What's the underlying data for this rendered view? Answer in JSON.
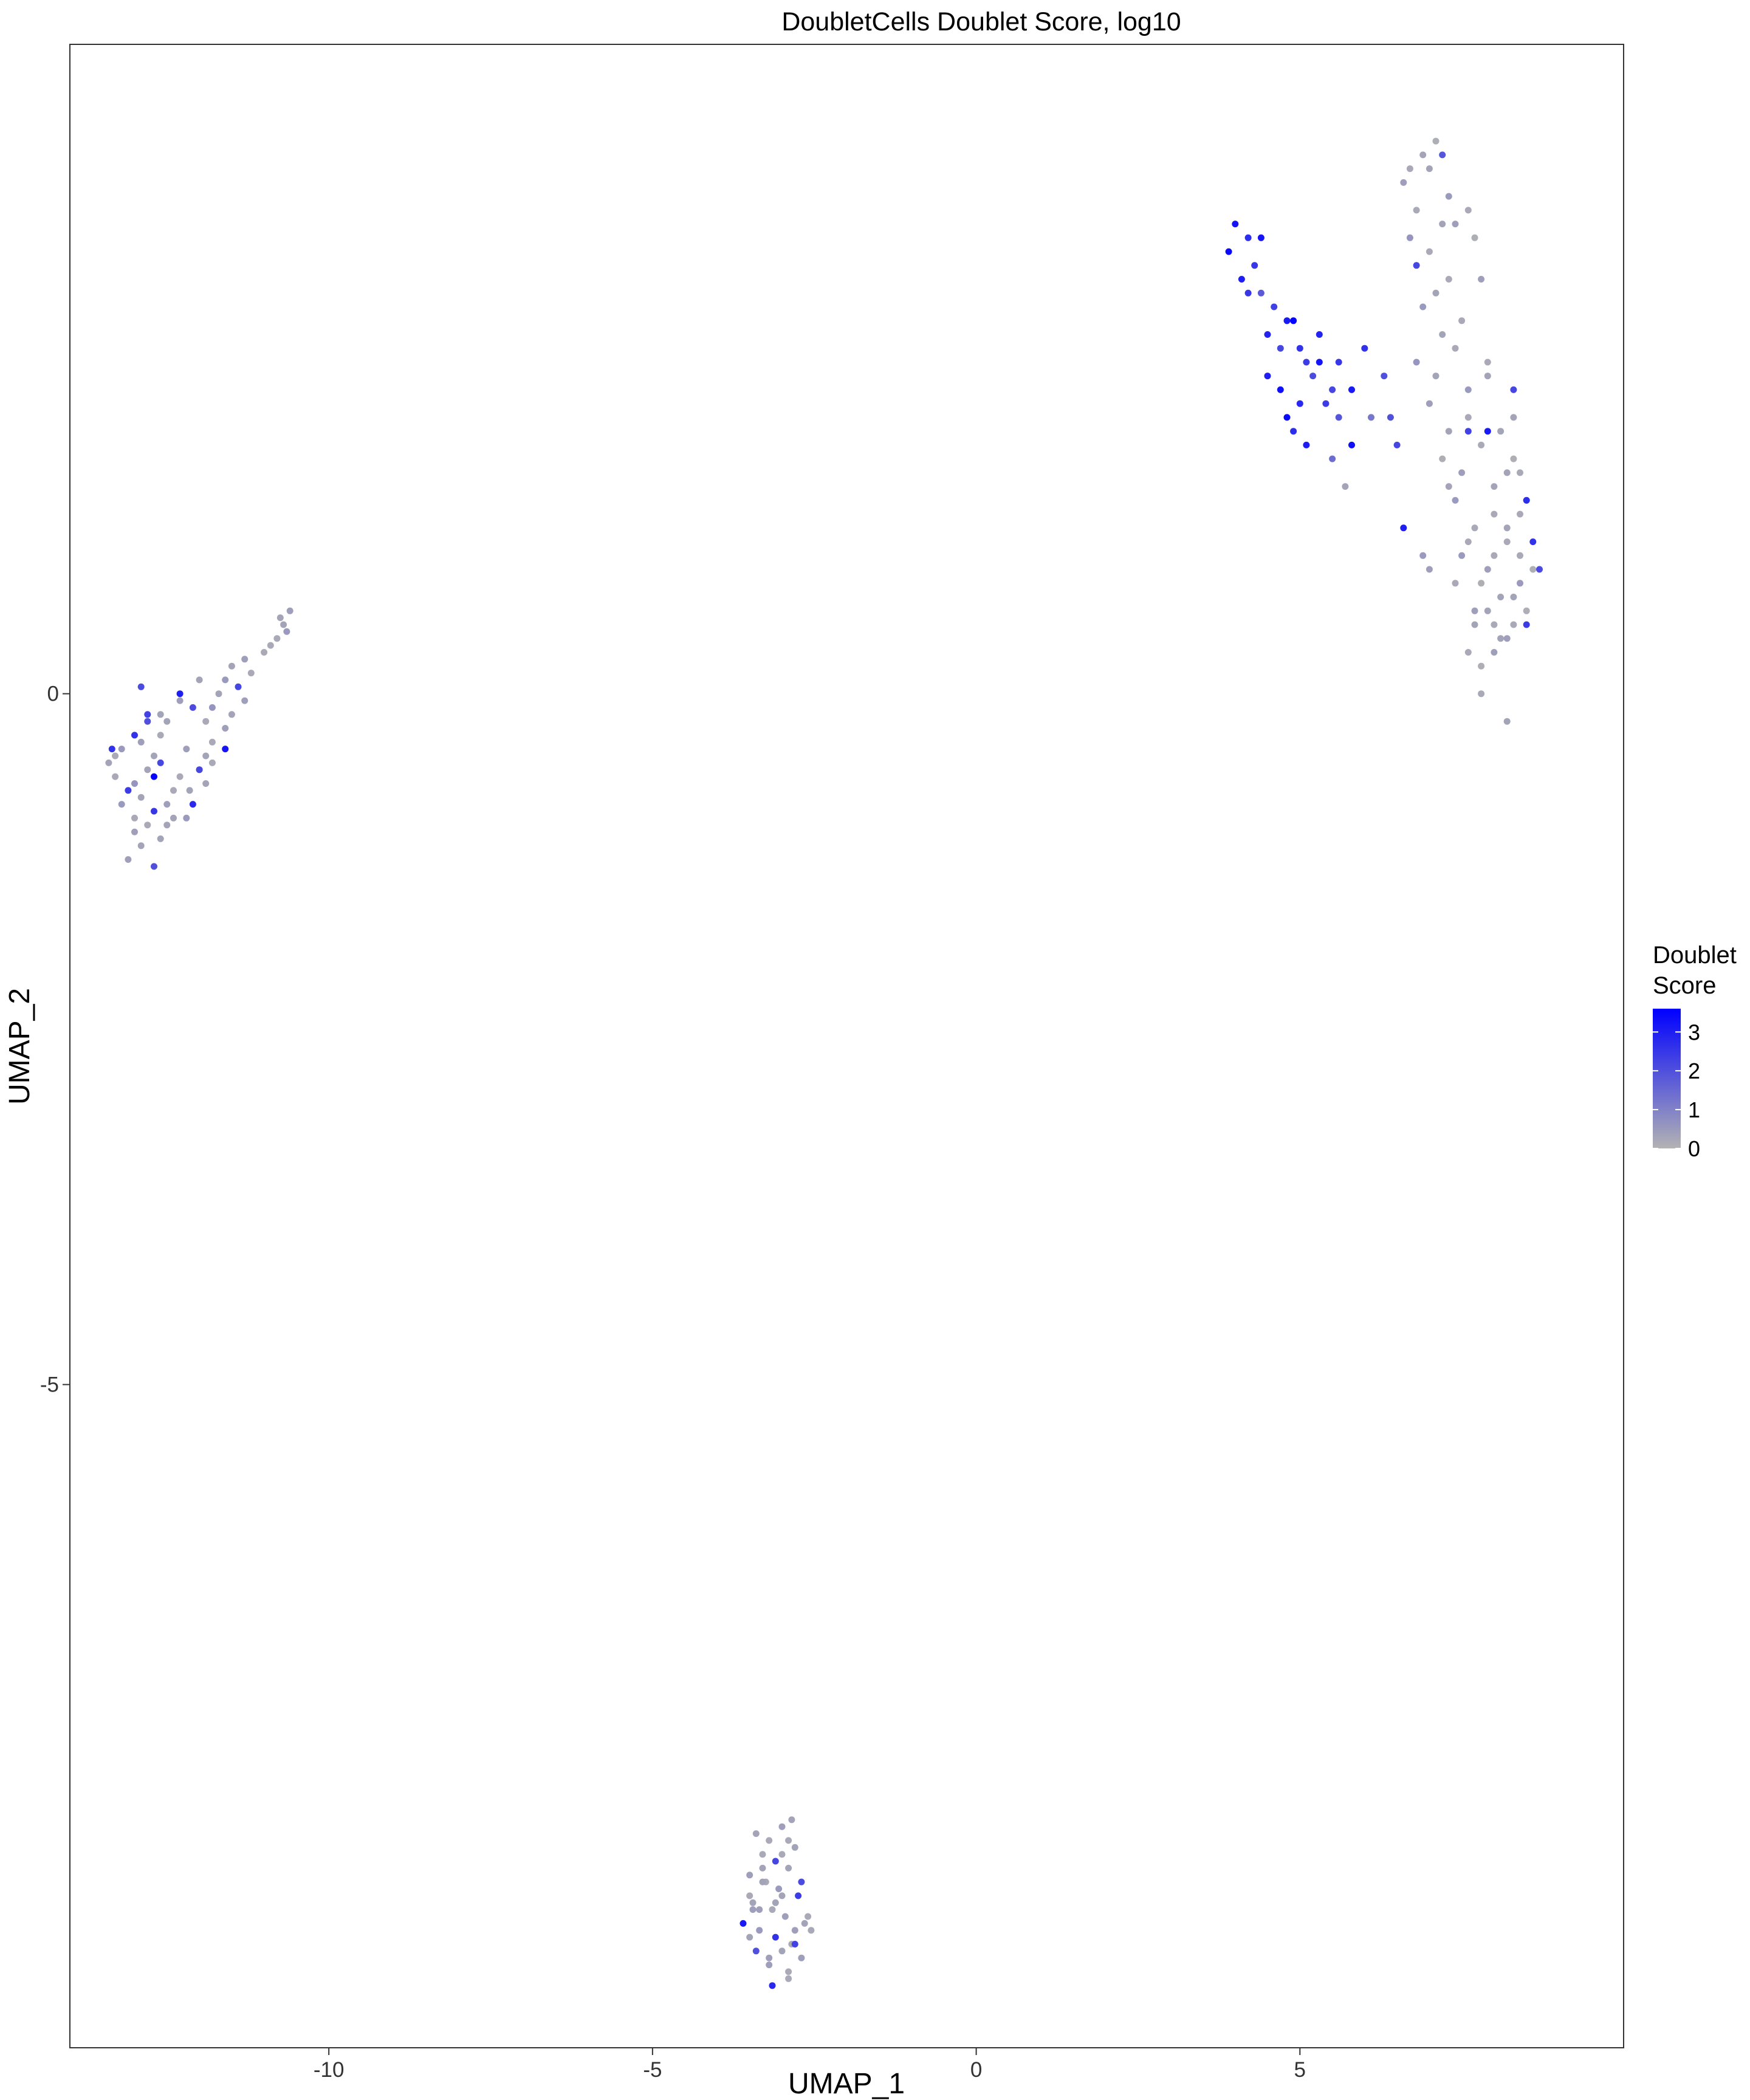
{
  "chart_data": {
    "type": "scatter",
    "title": "DoubletCells Doublet Score, log10",
    "xlabel": "UMAP_1",
    "ylabel": "UMAP_2",
    "xlim": [
      -14.0,
      10.0
    ],
    "ylim": [
      -9.8,
      4.7
    ],
    "x_ticks": [
      -10,
      -5,
      0,
      5
    ],
    "y_ticks": [
      0,
      -5
    ],
    "grid": false,
    "legend": {
      "title_line1": "Doublet",
      "title_line2": "Score",
      "placement": "right",
      "ticks": [
        0,
        1,
        2,
        3
      ],
      "range": [
        0,
        3.6
      ],
      "low_color": "#b3b3b3",
      "high_color": "#0000ff"
    },
    "clusters": [
      {
        "cluster": "upper-right",
        "x": [
          6.7,
          6.9,
          7.1,
          7.2,
          6.6,
          6.8,
          7.0,
          7.3,
          7.6,
          6.7,
          7.0,
          7.4,
          7.7,
          6.8,
          7.1,
          7.3,
          6.9,
          7.2,
          7.5,
          7.8,
          6.8,
          7.1,
          7.4,
          7.6,
          7.0,
          7.3,
          7.6,
          7.9,
          7.2,
          7.5,
          7.8,
          8.1,
          7.4,
          7.7,
          8.0,
          8.3,
          7.6,
          7.9,
          8.2,
          8.5,
          7.5,
          7.8,
          8.1,
          8.4,
          7.7,
          8.0,
          8.3,
          8.6,
          7.4,
          7.7,
          8.0,
          8.2,
          8.5,
          7.6,
          7.9,
          8.2,
          8.4,
          7.8,
          8.1,
          8.3,
          7.8,
          8.0,
          8.2,
          8.4,
          8.6,
          8.7,
          8.2,
          8.5,
          7.9,
          8.3,
          4.0,
          4.2,
          3.9,
          4.1,
          4.3,
          4.4,
          4.6,
          4.8,
          4.5,
          4.7,
          4.9,
          5.1,
          4.5,
          4.7,
          5.0,
          5.2,
          4.8,
          5.0,
          5.3,
          5.5,
          4.9,
          5.1,
          5.4,
          5.6,
          5.3,
          5.6,
          5.8,
          6.0,
          6.3,
          5.5,
          5.8,
          6.4,
          4.4,
          4.2,
          5.7,
          6.1,
          6.6,
          6.9,
          6.5,
          7.0,
          7.3,
          7.9,
          8.3,
          8.4,
          8.5,
          7.2,
          7.6,
          8.0
        ],
        "y": [
          3.8,
          3.9,
          4.0,
          3.9,
          3.7,
          3.5,
          3.8,
          3.6,
          3.5,
          3.3,
          3.2,
          3.4,
          3.3,
          3.1,
          2.9,
          3.0,
          2.8,
          2.6,
          2.7,
          3.0,
          2.4,
          2.3,
          2.5,
          2.2,
          2.1,
          1.9,
          2.0,
          2.3,
          1.7,
          1.6,
          1.8,
          1.9,
          1.4,
          1.2,
          1.5,
          1.7,
          1.1,
          0.9,
          1.2,
          1.4,
          1.0,
          0.8,
          0.7,
          1.0,
          0.6,
          0.5,
          0.7,
          0.9,
          0.8,
          0.5,
          1.3,
          0.4,
          0.6,
          0.3,
          0.6,
          1.1,
          0.8,
          0.2,
          0.4,
          0.5,
          0.0,
          0.3,
          1.6,
          1.3,
          1.1,
          0.9,
          -0.2,
          0.5,
          1.9,
          2.2,
          3.4,
          3.3,
          3.2,
          3.0,
          3.1,
          2.9,
          2.8,
          2.7,
          2.6,
          2.5,
          2.7,
          2.4,
          2.3,
          2.2,
          2.5,
          2.3,
          2.0,
          2.1,
          2.4,
          2.2,
          1.9,
          1.8,
          2.1,
          2.0,
          2.6,
          2.4,
          2.2,
          2.5,
          2.3,
          1.7,
          1.8,
          2.0,
          3.3,
          2.9,
          1.5,
          2.0,
          1.2,
          1.0,
          1.8,
          0.9,
          1.5,
          2.4,
          2.0,
          1.6,
          1.4,
          3.4,
          1.9,
          1.0
        ],
        "score": [
          0.2,
          0.3,
          0.1,
          1.9,
          0.4,
          0.2,
          0.3,
          0.5,
          0.2,
          0.6,
          0.2,
          0.4,
          0.1,
          2.2,
          0.3,
          0.2,
          0.5,
          0.3,
          0.2,
          0.4,
          0.6,
          0.3,
          0.2,
          0.5,
          0.4,
          0.3,
          0.2,
          0.3,
          0.1,
          0.4,
          0.2,
          0.3,
          0.5,
          0.2,
          0.3,
          0.1,
          0.2,
          0.4,
          0.3,
          0.2,
          0.5,
          0.1,
          0.3,
          0.2,
          0.4,
          0.2,
          0.3,
          0.1,
          0.2,
          0.3,
          0.2,
          0.4,
          0.1,
          0.2,
          0.3,
          0.2,
          0.5,
          0.1,
          0.3,
          0.2,
          0.2,
          0.4,
          0.3,
          0.2,
          2.6,
          2.1,
          0.3,
          2.4,
          3.1,
          2.2,
          3.2,
          2.7,
          3.4,
          3.0,
          2.5,
          1.8,
          2.3,
          3.1,
          2.9,
          2.2,
          3.5,
          2.4,
          3.0,
          3.3,
          2.6,
          2.1,
          3.4,
          2.8,
          3.2,
          2.2,
          2.7,
          3.0,
          2.4,
          1.9,
          2.9,
          2.5,
          3.1,
          2.6,
          2.0,
          1.4,
          3.3,
          2.0,
          3.2,
          2.5,
          0.3,
          1.2,
          3.0,
          0.5,
          2.2,
          0.4,
          0.3,
          0.2,
          0.3,
          0.2,
          2.7,
          0.3,
          2.3,
          0.2
        ]
      },
      {
        "cluster": "left",
        "x": [
          -10.7,
          -10.8,
          -10.6,
          -10.9,
          -10.75,
          -10.65,
          -11.0,
          -11.3,
          -11.5,
          -11.2,
          -11.6,
          -11.4,
          -11.7,
          -11.3,
          -11.8,
          -11.5,
          -11.9,
          -11.6,
          -12.0,
          -12.3,
          -12.1,
          -12.5,
          -12.8,
          -12.6,
          -12.9,
          -12.7,
          -13.0,
          -13.2,
          -12.8,
          -13.3,
          -13.1,
          -13.4,
          -13.0,
          -12.6,
          -12.9,
          -12.3,
          -12.5,
          -12.7,
          -12.4,
          -12.8,
          -13.0,
          -12.6,
          -12.2,
          -12.4,
          -12.0,
          -12.2,
          -11.8,
          -12.1,
          -11.9,
          -13.2,
          -12.9,
          -13.1,
          -12.7,
          -12.5,
          -13.3,
          -12.8,
          -12.6,
          -12.3,
          -12.9,
          -13.0,
          -12.7,
          -11.9,
          -12.0,
          -11.6,
          -11.8,
          -13.35,
          -12.15
        ],
        "y": [
          0.5,
          0.4,
          0.6,
          0.35,
          0.55,
          0.45,
          0.3,
          0.25,
          0.2,
          0.15,
          0.1,
          0.05,
          0.0,
          -0.05,
          -0.1,
          -0.15,
          -0.2,
          -0.25,
          0.1,
          0.0,
          -0.1,
          -0.2,
          -0.15,
          -0.3,
          -0.35,
          -0.45,
          -0.3,
          -0.4,
          -0.55,
          -0.6,
          -0.7,
          -0.5,
          -0.65,
          -0.5,
          -0.75,
          -0.6,
          -0.8,
          -0.85,
          -0.9,
          -0.95,
          -1.0,
          -1.05,
          -0.9,
          -0.7,
          -0.55,
          -0.4,
          -0.35,
          -0.8,
          -0.65,
          -0.8,
          -1.1,
          -1.2,
          -1.25,
          -0.95,
          -0.45,
          -0.2,
          -0.15,
          -0.05,
          0.05,
          -0.9,
          -0.6,
          -0.45,
          -0.55,
          -0.4,
          -0.5,
          -0.4,
          -0.7
        ],
        "score": [
          0.3,
          0.2,
          0.4,
          0.2,
          0.3,
          0.5,
          0.2,
          0.4,
          0.3,
          0.2,
          0.5,
          2.2,
          0.3,
          0.4,
          0.6,
          0.3,
          0.2,
          0.4,
          0.3,
          3.0,
          2.1,
          0.3,
          2.3,
          0.2,
          0.4,
          0.3,
          2.6,
          0.5,
          0.3,
          0.2,
          2.4,
          0.3,
          0.6,
          2.2,
          0.3,
          0.2,
          0.4,
          2.5,
          0.3,
          0.2,
          0.4,
          0.3,
          0.5,
          0.2,
          0.3,
          0.4,
          0.2,
          2.8,
          0.3,
          0.5,
          0.3,
          0.4,
          2.0,
          0.3,
          0.2,
          2.0,
          0.3,
          0.4,
          2.1,
          0.2,
          3.5,
          0.3,
          2.2,
          3.2,
          0.2,
          2.6,
          0.3
        ]
      },
      {
        "cluster": "bottom",
        "x": [
          -3.4,
          -3.2,
          -3.0,
          -2.8,
          -3.3,
          -3.1,
          -2.9,
          -3.5,
          -3.25,
          -3.05,
          -2.75,
          -3.45,
          -3.15,
          -2.95,
          -2.65,
          -3.35,
          -3.1,
          -2.85,
          -3.0,
          -2.7,
          -3.5,
          -3.3,
          -3.6,
          -3.2,
          -2.9,
          -3.4,
          -3.1,
          -2.8,
          -2.6,
          -3.3,
          -3.0,
          -2.7,
          -3.2,
          -3.5,
          -2.9,
          -3.15,
          -2.85,
          -3.35,
          -2.55,
          -3.0,
          -2.8,
          -3.45,
          -2.9
        ],
        "y": [
          -8.25,
          -8.3,
          -8.2,
          -8.35,
          -8.4,
          -8.45,
          -8.5,
          -8.55,
          -8.6,
          -8.65,
          -8.7,
          -8.75,
          -8.8,
          -8.85,
          -8.9,
          -8.95,
          -9.0,
          -9.05,
          -9.1,
          -9.15,
          -8.7,
          -8.5,
          -8.9,
          -9.2,
          -9.25,
          -9.1,
          -8.75,
          -8.95,
          -8.85,
          -8.6,
          -8.4,
          -8.6,
          -9.15,
          -9.0,
          -9.3,
          -9.35,
          -8.15,
          -8.8,
          -8.95,
          -8.7,
          -9.05,
          -8.8,
          -8.3
        ],
        "score": [
          0.3,
          0.2,
          0.4,
          0.3,
          0.2,
          2.2,
          0.3,
          0.4,
          0.2,
          0.5,
          2.4,
          0.3,
          0.2,
          0.4,
          0.3,
          0.5,
          2.6,
          0.2,
          0.3,
          0.4,
          0.2,
          0.3,
          3.1,
          0.4,
          0.2,
          2.0,
          0.3,
          0.4,
          0.2,
          0.3,
          0.2,
          2.1,
          0.4,
          0.3,
          0.2,
          2.8,
          0.3,
          0.4,
          0.2,
          0.3,
          2.3,
          0.4,
          0.2
        ]
      }
    ]
  }
}
